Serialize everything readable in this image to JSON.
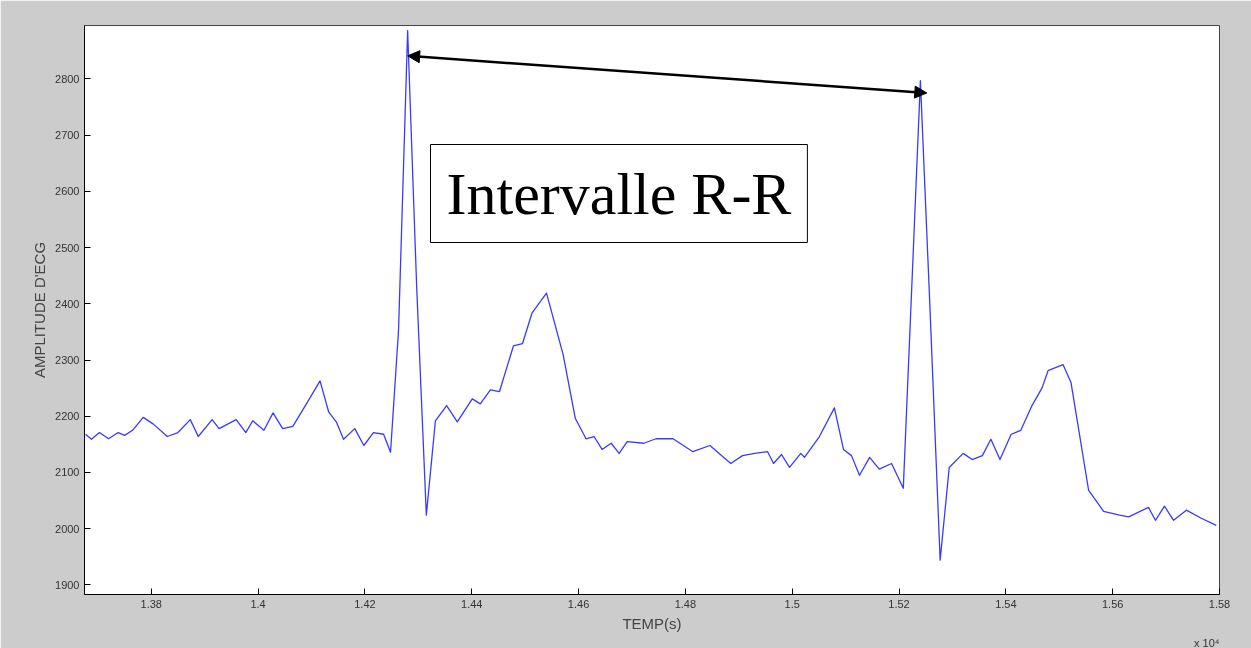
{
  "chart_data": {
    "type": "line",
    "xlabel": "TEMP(s)",
    "ylabel": "AMPLITUDE D'ECG",
    "annotations": [
      "Intervalle R-R",
      "x 10⁴"
    ],
    "xlim": [
      1.3675,
      1.58
    ],
    "ylim": [
      1883,
      2895
    ],
    "xticks": [
      1.38,
      1.4,
      1.42,
      1.44,
      1.46,
      1.48,
      1.5,
      1.52,
      1.54,
      1.56,
      1.58
    ],
    "yticks": [
      1900,
      2000,
      2100,
      2200,
      2300,
      2400,
      2500,
      2600,
      2700,
      2800
    ],
    "grid": false,
    "marker": "none",
    "line_style": "solid",
    "series": [
      {
        "color": "#3a3aff",
        "x": [
          1.3677,
          1.3688,
          1.3703,
          1.372,
          1.3738,
          1.375,
          1.3765,
          1.3785,
          1.3804,
          1.383,
          1.385,
          1.3873,
          1.3888,
          1.3914,
          1.3927,
          1.3959,
          1.3977,
          1.399,
          1.4011,
          1.4028,
          1.4046,
          1.4065,
          1.4093,
          1.4116,
          1.4132,
          1.4147,
          1.416,
          1.4181,
          1.4198,
          1.4216,
          1.4235,
          1.4248,
          1.4263,
          1.428,
          1.4297,
          1.4315,
          1.4332,
          1.4353,
          1.4373,
          1.4401,
          1.4416,
          1.4435,
          1.4452,
          1.4478,
          1.4495,
          1.4513,
          1.454,
          1.4571,
          1.4594,
          1.4614,
          1.4629,
          1.4644,
          1.4661,
          1.4676,
          1.4691,
          1.4722,
          1.4745,
          1.4777,
          1.4814,
          1.4846,
          1.4885,
          1.4907,
          1.493,
          1.4954,
          1.4965,
          1.498,
          1.4995,
          1.5016,
          1.5023,
          1.5051,
          1.5079,
          1.5096,
          1.5111,
          1.5126,
          1.5145,
          1.5163,
          1.5186,
          1.5208,
          1.5227,
          1.524,
          1.5258,
          1.5277,
          1.5294,
          1.532,
          1.5337,
          1.5356,
          1.5372,
          1.5389,
          1.541,
          1.5428,
          1.5449,
          1.5468,
          1.5479,
          1.5507,
          1.5522,
          1.5555,
          1.5583,
          1.5613,
          1.563,
          1.5667,
          1.568,
          1.5697,
          1.5714,
          1.5738,
          1.5765,
          1.5794
        ],
        "values": [
          2168,
          2159,
          2171,
          2160,
          2171,
          2166,
          2175,
          2198,
          2186,
          2164,
          2171,
          2194,
          2164,
          2194,
          2178,
          2194,
          2171,
          2192,
          2175,
          2206,
          2178,
          2182,
          2226,
          2263,
          2208,
          2189,
          2159,
          2178,
          2148,
          2171,
          2168,
          2136,
          2354,
          2886,
          2428,
          2024,
          2192,
          2219,
          2190,
          2231,
          2222,
          2247,
          2244,
          2325,
          2329,
          2384,
          2419,
          2310,
          2196,
          2160,
          2164,
          2141,
          2152,
          2134,
          2155,
          2152,
          2160,
          2160,
          2137,
          2148,
          2116,
          2130,
          2134,
          2137,
          2116,
          2132,
          2109,
          2134,
          2127,
          2164,
          2215,
          2141,
          2130,
          2095,
          2127,
          2106,
          2116,
          2072,
          2501,
          2797,
          2391,
          1944,
          2109,
          2134,
          2123,
          2130,
          2159,
          2123,
          2168,
          2175,
          2219,
          2251,
          2281,
          2292,
          2260,
          2068,
          2031,
          2024,
          2021,
          2038,
          2015,
          2040,
          2015,
          2033,
          2019,
          2006
        ]
      }
    ]
  }
}
